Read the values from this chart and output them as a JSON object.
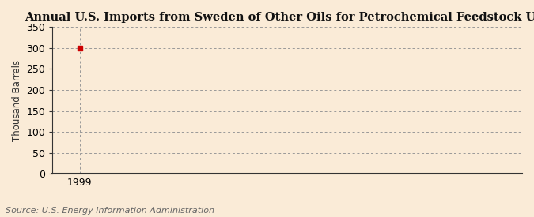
{
  "title": "Annual U.S. Imports from Sweden of Other Oils for Petrochemical Feedstock Use",
  "ylabel": "Thousand Barrels",
  "source": "Source: U.S. Energy Information Administration",
  "x_data": [
    1999
  ],
  "y_data": [
    300
  ],
  "xlim": [
    1998.3,
    2010.5
  ],
  "ylim": [
    0,
    350
  ],
  "yticks": [
    0,
    50,
    100,
    150,
    200,
    250,
    300,
    350
  ],
  "xticks": [
    1999
  ],
  "background_color": "#faebd7",
  "plot_bg_color": "#faebd7",
  "grid_color": "#999999",
  "point_color": "#cc0000",
  "bottom_spine_color": "#333333",
  "left_spine_color": "#333333",
  "title_fontsize": 10.5,
  "label_fontsize": 8.5,
  "tick_fontsize": 9,
  "source_fontsize": 8
}
